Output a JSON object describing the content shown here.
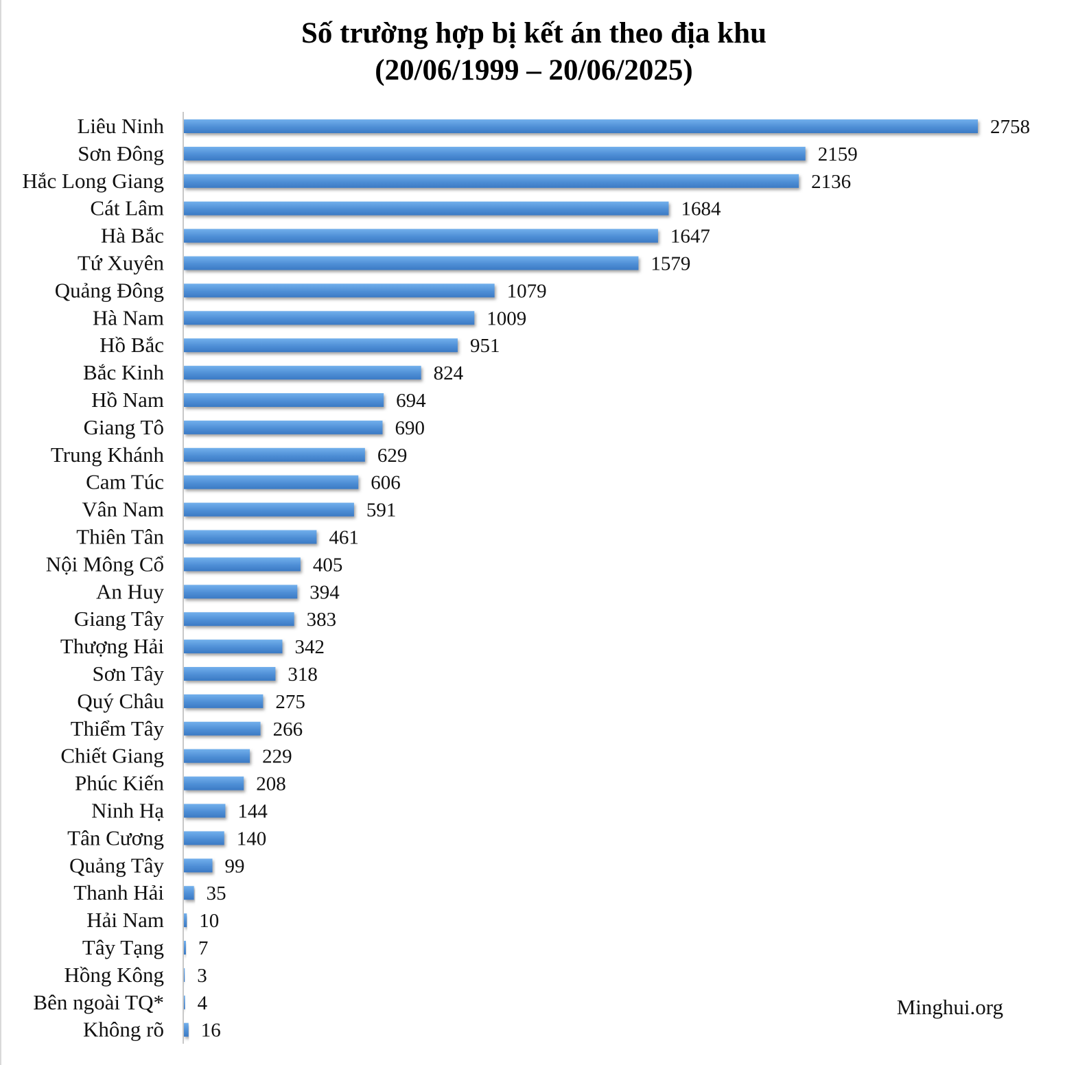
{
  "chart_data": {
    "type": "bar",
    "orientation": "horizontal",
    "title": "Số trường hợp bị kết án theo địa khu",
    "subtitle": "(20/06/1999 – 20/06/2025)",
    "xlabel": "",
    "ylabel": "",
    "categories": [
      "Liêu Ninh",
      "Sơn Đông",
      "Hắc Long Giang",
      "Cát Lâm",
      "Hà Bắc",
      "Tứ Xuyên",
      "Quảng Đông",
      "Hà Nam",
      "Hồ Bắc",
      "Bắc Kinh",
      "Hồ Nam",
      "Giang Tô",
      "Trung Khánh",
      "Cam Túc",
      "Vân Nam",
      "Thiên Tân",
      "Nội Mông Cổ",
      "An Huy",
      "Giang Tây",
      "Thượng Hải",
      "Sơn Tây",
      "Quý Châu",
      "Thiểm Tây",
      "Chiết Giang",
      "Phúc Kiến",
      "Ninh Hạ",
      "Tân Cương",
      "Quảng Tây",
      "Thanh Hải",
      "Hải Nam",
      "Tây Tạng",
      "Hồng Kông",
      "Bên ngoài TQ*",
      "Không rõ"
    ],
    "values": [
      2758,
      2159,
      2136,
      1684,
      1647,
      1579,
      1079,
      1009,
      951,
      824,
      694,
      690,
      629,
      606,
      591,
      461,
      405,
      394,
      383,
      342,
      318,
      275,
      266,
      229,
      208,
      144,
      140,
      99,
      35,
      10,
      7,
      3,
      4,
      16
    ],
    "bar_color": "#4f8fd6",
    "grid": false,
    "legend": "none"
  },
  "source": "Minghui.org"
}
